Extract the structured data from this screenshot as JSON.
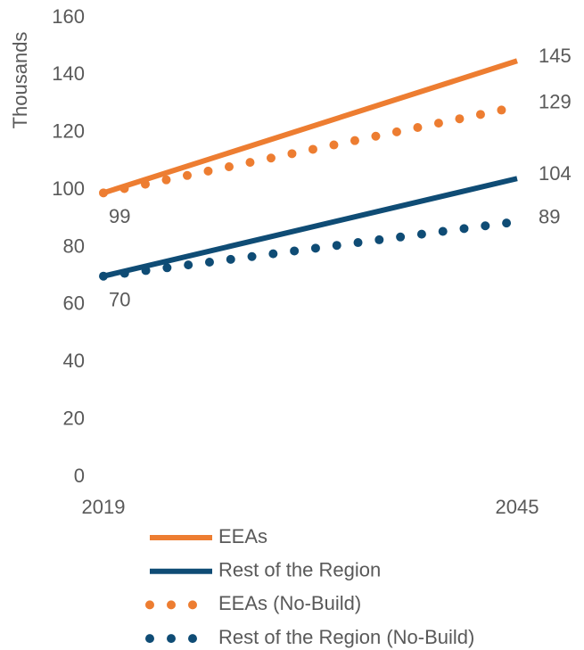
{
  "chart_data": {
    "type": "line",
    "y_label": "Thousands",
    "x": [
      2019,
      2045
    ],
    "xlim": [
      2019,
      2045
    ],
    "xticks": [
      2019,
      2045
    ],
    "ylim": [
      0,
      160
    ],
    "yticks": [
      0,
      20,
      40,
      60,
      80,
      100,
      120,
      140,
      160
    ],
    "series": [
      {
        "name": "EEAs",
        "color": "#ED7D31",
        "style": "solid",
        "values": [
          99,
          145
        ]
      },
      {
        "name": "Rest of the Region",
        "color": "#0F4C75",
        "style": "solid",
        "values": [
          70,
          104
        ]
      },
      {
        "name": "EEAs (No-Build)",
        "color": "#ED7D31",
        "style": "dotted",
        "values": [
          99,
          129
        ]
      },
      {
        "name": "Rest of the Region (No-Build)",
        "color": "#0F4C75",
        "style": "dotted",
        "values": [
          70,
          89
        ]
      }
    ]
  }
}
